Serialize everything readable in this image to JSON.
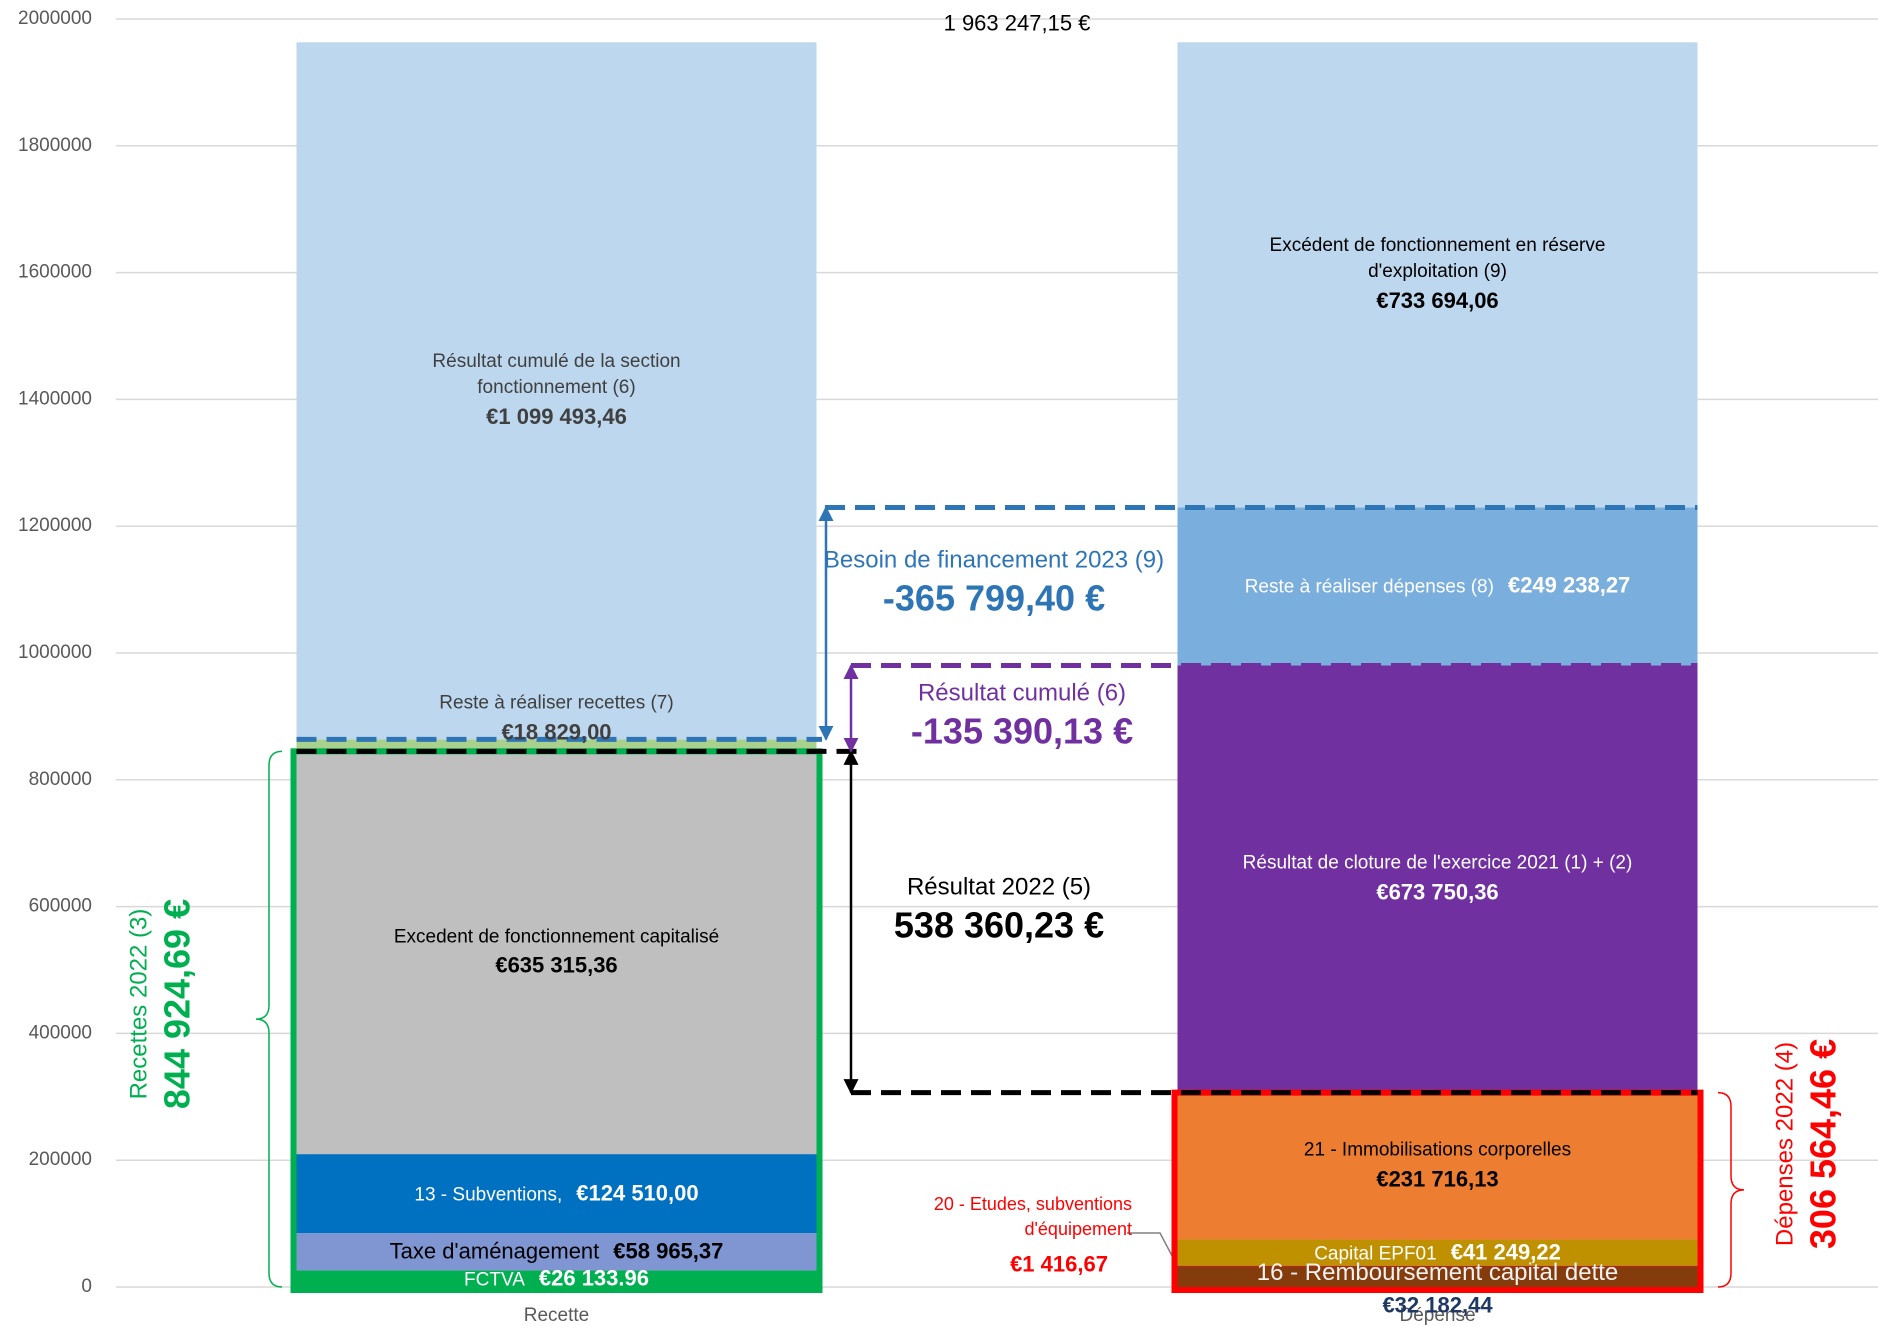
{
  "chart_data": {
    "type": "bar",
    "stacked": true,
    "categories": [
      "Recette",
      "Dépense"
    ],
    "ylim": [
      0,
      2000000
    ],
    "yticks": [
      0,
      200000,
      400000,
      600000,
      800000,
      1000000,
      1200000,
      1400000,
      1600000,
      1800000,
      2000000
    ],
    "grid": true,
    "series": [
      {
        "name": "FCTVA",
        "color": "#00B050",
        "values": [
          26133.96,
          null
        ],
        "value_labels": [
          "€26 133.96",
          null
        ]
      },
      {
        "name": "Taxe d'aménagement",
        "color": "#7F96D2",
        "values": [
          58965.37,
          null
        ],
        "value_labels": [
          "€58 965,37",
          null
        ]
      },
      {
        "name": "13 - Subventions,",
        "color": "#0070C0",
        "values": [
          124510.0,
          null
        ],
        "value_labels": [
          "€124 510,00",
          null
        ]
      },
      {
        "name": "Excedent de fonctionnement capitalisé",
        "color": "#BFBFBF",
        "values": [
          635315.36,
          null
        ],
        "value_labels": [
          "€635 315,36",
          null
        ]
      },
      {
        "name": "Reste à réaliser recettes (7)",
        "color": "#A9D18E",
        "values": [
          18829.0,
          null
        ],
        "value_labels": [
          "€18 829,00",
          null
        ]
      },
      {
        "name": "Résultat cumulé de la section fonctionnement (6)",
        "color": "#BDD7EE",
        "values": [
          1099493.46,
          null
        ],
        "value_labels": [
          "€1 099 493,46",
          null
        ]
      },
      {
        "name": "16 - Remboursement capital dette",
        "color": "#843C0C",
        "values": [
          null,
          32182.44
        ],
        "value_labels": [
          null,
          "€32 182,44"
        ]
      },
      {
        "name": "20 - Etudes, subventions d'équipement",
        "color": "#C00000",
        "values": [
          null,
          1416.67
        ],
        "value_labels": [
          null,
          "€1 416,67"
        ]
      },
      {
        "name": "Capital EPF01",
        "color": "#BF9000",
        "values": [
          null,
          41249.22
        ],
        "value_labels": [
          null,
          "€41 249,22"
        ]
      },
      {
        "name": "21 - Immobilisations corporelles",
        "color": "#ED7D31",
        "values": [
          null,
          231716.13
        ],
        "value_labels": [
          null,
          "€231 716,13"
        ]
      },
      {
        "name": "Résultat de cloture de l'exercice 2021 (1) + (2)",
        "color": "#7030A0",
        "values": [
          null,
          673750.36
        ],
        "value_labels": [
          null,
          "€673 750,36"
        ]
      },
      {
        "name": "Reste à réaliser dépenses (8)",
        "color": "#7AAEDC",
        "values": [
          null,
          249238.27
        ],
        "value_labels": [
          null,
          "€249 238,27"
        ]
      },
      {
        "name": "Excédent de fonctionnement en réserve d'exploitation (9)",
        "color": "#BDD7EE",
        "values": [
          null,
          733694.06
        ],
        "value_labels": [
          null,
          "€733 694,06"
        ]
      }
    ],
    "annotations": {
      "total": {
        "value": 1963247.15,
        "label": "1 963 247,15 €"
      },
      "besoin": {
        "text": "Besoin de financement 2023 (9)",
        "value": -365799.4,
        "label": "-365 799,40 €",
        "color": "#2E75B6"
      },
      "resultat_cumule": {
        "text": "Résultat cumulé (6)",
        "value": -135390.13,
        "label": "-135 390,13 €",
        "color": "#7030A0"
      },
      "resultat_2022": {
        "text": "Résultat 2022 (5)",
        "value": 538360.23,
        "label": "538 360,23 €",
        "color": "#000000"
      },
      "recettes": {
        "text": "Recettes 2022 (3)",
        "value": 844924.69,
        "label": "844 924,69 €",
        "color": "#00B050"
      },
      "depenses": {
        "text": "Dépenses 2022 (4)",
        "value": 306564.46,
        "label": "306 564,46 €",
        "color": "#FF0000"
      }
    }
  }
}
